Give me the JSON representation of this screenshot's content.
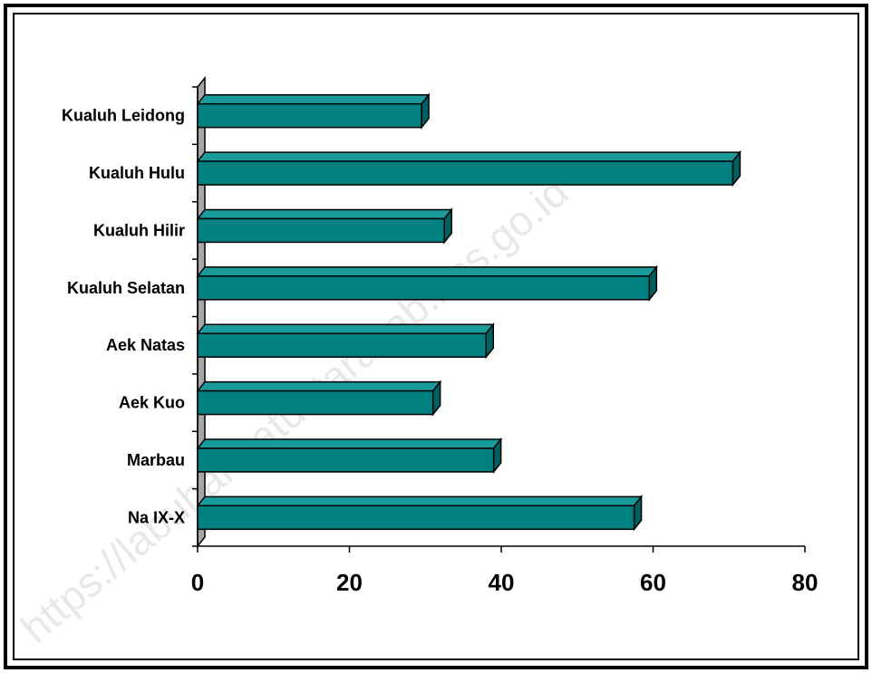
{
  "watermark": "https://labuhanbatuutarakab.bps.go.id",
  "chart_data": {
    "type": "bar",
    "orientation": "horizontal",
    "style": "3d",
    "categories": [
      "Kualuh Leidong",
      "Kualuh Hulu",
      "Kualuh Hilir",
      "Kualuh Selatan",
      "Aek Natas",
      "Aek Kuo",
      "Marbau",
      "Na IX-X"
    ],
    "values": [
      29.5,
      70.5,
      32.5,
      59.5,
      38,
      31,
      39,
      57.5
    ],
    "xlim": [
      0,
      80
    ],
    "xticks": [
      "0",
      "20",
      "40",
      "60",
      "80"
    ],
    "grid": false,
    "title": "",
    "xlabel": "",
    "ylabel": "",
    "bar_color": "#008080",
    "bar_top_color": "#1a9a9a",
    "bar_side_color": "#005f5f",
    "wall_color": "#a6a6a6"
  }
}
